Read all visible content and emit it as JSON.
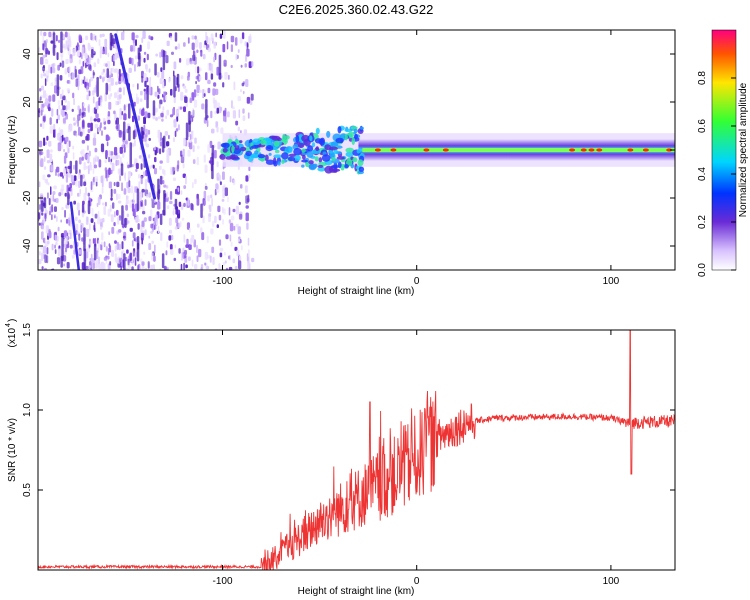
{
  "title": "C2E6.2025.360.02.43.G22",
  "chart_data": [
    {
      "type": "heatmap",
      "name": "spectrogram",
      "xlabel": "Height of straight line (km)",
      "ylabel": "Frequency (Hz)",
      "xlim": [
        -195,
        133
      ],
      "ylim": [
        -50,
        50
      ],
      "xticks": [
        -100,
        0,
        100
      ],
      "yticks": [
        -40,
        -20,
        0,
        20,
        40
      ],
      "colorbar": {
        "label": "Normalized spectral amplitude",
        "range": [
          0,
          1
        ],
        "ticks": [
          0.0,
          0.2,
          0.4,
          0.6,
          0.8
        ],
        "tick_labels": [
          "0.0",
          "0.2",
          "0.4",
          "0.6",
          "0.8"
        ]
      },
      "features": {
        "noise_region_km": [
          -195,
          -85
        ],
        "diagonal_track": {
          "from_km": -155,
          "from_hz": 48,
          "to_km": -135,
          "to_hz": -20
        },
        "carrier_band_hz": 0,
        "carrier_start_km": -100
      }
    },
    {
      "type": "line",
      "name": "snr",
      "xlabel": "Height of straight line (km)",
      "ylabel": "SNR (10 * v/v)",
      "multiplier": "(x10",
      "multiplier_exp": "4",
      "xlim": [
        -195,
        133
      ],
      "ylim": [
        0,
        1.5
      ],
      "xticks": [
        -100,
        0,
        100
      ],
      "yticks": [
        0.5,
        1.0,
        1.5
      ],
      "ytick_labels": [
        "0.5",
        "1.0",
        "1.5"
      ],
      "color": "#ee3333",
      "envelope_points": [
        {
          "x": -195,
          "y": 0.02
        },
        {
          "x": -80,
          "y": 0.02
        },
        {
          "x": -70,
          "y": 0.1
        },
        {
          "x": -50,
          "y": 0.3
        },
        {
          "x": -30,
          "y": 0.45
        },
        {
          "x": -10,
          "y": 0.6
        },
        {
          "x": 0,
          "y": 0.7
        },
        {
          "x": 10,
          "y": 0.82
        },
        {
          "x": 25,
          "y": 0.92
        },
        {
          "x": 40,
          "y": 0.95
        },
        {
          "x": 80,
          "y": 0.96
        },
        {
          "x": 100,
          "y": 0.95
        },
        {
          "x": 108,
          "y": 0.92
        },
        {
          "x": 133,
          "y": 0.93
        }
      ],
      "spikes": [
        {
          "x": -24,
          "y": 1.05
        },
        {
          "x": 110,
          "y": 1.5
        },
        {
          "x": 110.5,
          "y": 0.6
        }
      ]
    }
  ]
}
